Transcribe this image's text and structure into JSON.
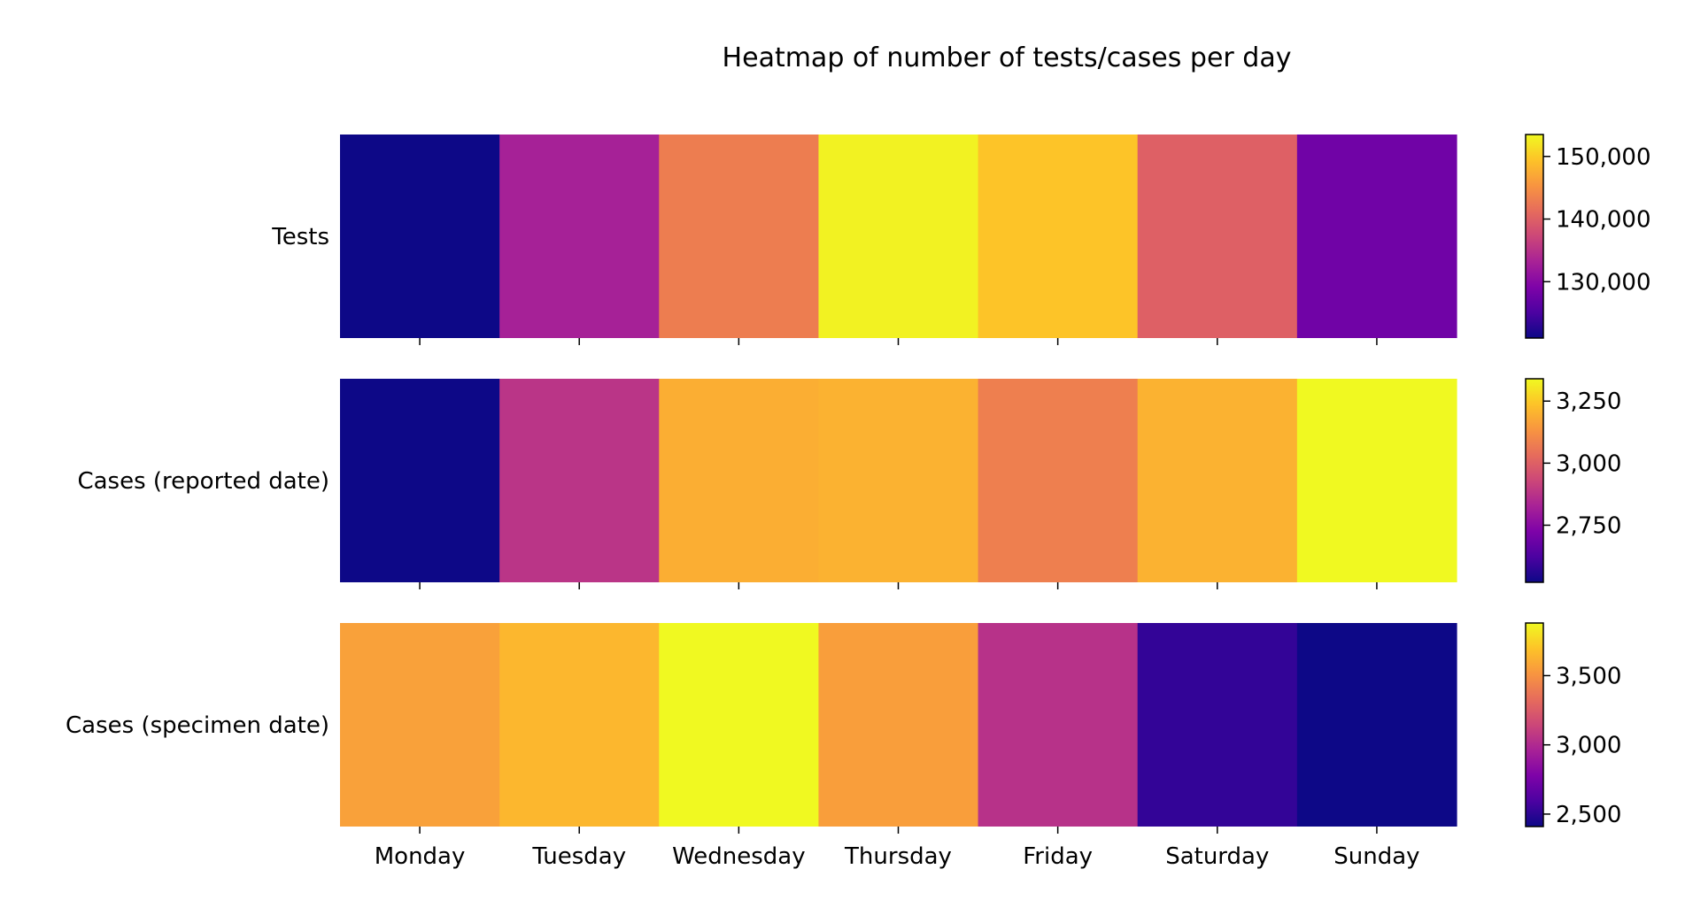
{
  "chart_data": {
    "type": "heatmap",
    "title": "Heatmap of number of tests/cases per day",
    "colormap": "plasma",
    "categories": [
      "Monday",
      "Tuesday",
      "Wednesday",
      "Thursday",
      "Friday",
      "Saturday",
      "Sunday"
    ],
    "rows": [
      {
        "label": "Tests",
        "values": [
          121000,
          133000,
          143000,
          153000,
          149500,
          140000,
          128000
        ],
        "vmin": 121000,
        "vmax": 153500,
        "colorbar_ticks": [
          130000,
          140000,
          150000
        ],
        "colorbar_tick_labels": [
          "130,000",
          "140,000",
          "150,000"
        ]
      },
      {
        "label": "Cases (reported date)",
        "values": [
          2520,
          2880,
          3190,
          3200,
          3080,
          3200,
          3340
        ],
        "vmin": 2520,
        "vmax": 3340,
        "colorbar_ticks": [
          2750,
          3000,
          3250
        ],
        "colorbar_tick_labels": [
          "2,750",
          "3,000",
          "3,250"
        ]
      },
      {
        "label": "Cases (specimen date)",
        "values": [
          3560,
          3650,
          3880,
          3550,
          3040,
          2520,
          2410
        ],
        "vmin": 2410,
        "vmax": 3880,
        "colorbar_ticks": [
          2500,
          3000,
          3500
        ],
        "colorbar_tick_labels": [
          "2,500",
          "3,000",
          "3,500"
        ]
      }
    ]
  }
}
